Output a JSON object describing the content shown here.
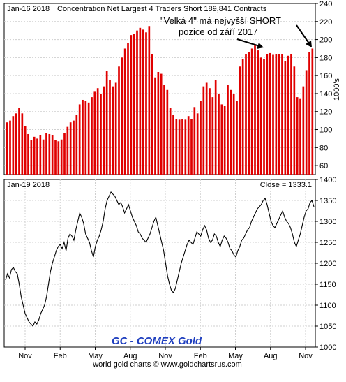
{
  "chart_data": [
    {
      "type": "bar",
      "title_date": "Jan-16  2018",
      "title": "Concentration Net Largest 4 Traders Short 189,841 Contracts",
      "ylabel": "1000's",
      "ylim": [
        50,
        240
      ],
      "yticks": [
        60,
        80,
        100,
        120,
        140,
        160,
        180,
        200,
        220,
        240
      ],
      "bar_color": "#e00000",
      "grid": true,
      "annotation": {
        "line1": "\"Velká 4\" má nejvyšší SHORT",
        "line2": "pozice od září 2017"
      },
      "values": [
        108,
        110,
        115,
        118,
        124,
        118,
        104,
        95,
        88,
        92,
        90,
        94,
        89,
        96,
        95,
        94,
        88,
        87,
        89,
        96,
        103,
        108,
        110,
        116,
        128,
        133,
        132,
        130,
        136,
        142,
        146,
        140,
        148,
        165,
        155,
        148,
        152,
        170,
        180,
        190,
        196,
        205,
        206,
        210,
        213,
        211,
        208,
        215,
        184,
        158,
        164,
        162,
        150,
        144,
        124,
        116,
        112,
        111,
        112,
        111,
        115,
        112,
        125,
        118,
        132,
        148,
        152,
        146,
        136,
        155,
        140,
        128,
        126,
        150,
        144,
        140,
        132,
        170,
        178,
        184,
        186,
        190,
        194,
        188,
        180,
        178,
        184,
        185,
        183,
        184,
        184,
        184,
        176,
        182,
        184,
        170,
        136,
        134,
        148,
        166,
        186,
        190
      ]
    },
    {
      "type": "line",
      "title_date": "Jan-19  2018",
      "close_label": "Close = 1333.1",
      "ylim": [
        1000,
        1400
      ],
      "yticks": [
        1000,
        1050,
        1100,
        1150,
        1200,
        1250,
        1300,
        1350,
        1400
      ],
      "line_color": "#000000",
      "grid": true,
      "brand": "GC - COMEX Gold",
      "x_labels": [
        "Nov",
        "Feb",
        "May",
        "Aug",
        "Nov",
        "Feb",
        "May",
        "Aug",
        "Nov"
      ],
      "values": [
        1160,
        1175,
        1165,
        1185,
        1190,
        1180,
        1175,
        1150,
        1120,
        1100,
        1080,
        1070,
        1060,
        1055,
        1050,
        1060,
        1055,
        1065,
        1080,
        1090,
        1100,
        1120,
        1150,
        1180,
        1200,
        1215,
        1230,
        1240,
        1245,
        1235,
        1250,
        1230,
        1260,
        1270,
        1265,
        1255,
        1280,
        1300,
        1320,
        1310,
        1295,
        1270,
        1260,
        1250,
        1230,
        1215,
        1240,
        1255,
        1265,
        1280,
        1300,
        1330,
        1350,
        1360,
        1370,
        1365,
        1360,
        1350,
        1340,
        1345,
        1335,
        1320,
        1330,
        1340,
        1325,
        1310,
        1300,
        1290,
        1275,
        1270,
        1260,
        1255,
        1250,
        1260,
        1270,
        1285,
        1300,
        1310,
        1290,
        1270,
        1250,
        1230,
        1200,
        1170,
        1150,
        1135,
        1130,
        1140,
        1160,
        1180,
        1200,
        1215,
        1230,
        1245,
        1255,
        1250,
        1245,
        1260,
        1275,
        1270,
        1265,
        1280,
        1290,
        1280,
        1260,
        1250,
        1255,
        1270,
        1265,
        1250,
        1240,
        1255,
        1265,
        1260,
        1250,
        1235,
        1230,
        1220,
        1215,
        1230,
        1240,
        1255,
        1260,
        1270,
        1280,
        1285,
        1300,
        1310,
        1320,
        1330,
        1335,
        1340,
        1350,
        1355,
        1340,
        1320,
        1300,
        1290,
        1285,
        1295,
        1305,
        1315,
        1325,
        1310,
        1300,
        1295,
        1285,
        1270,
        1250,
        1240,
        1255,
        1270,
        1290,
        1310,
        1325,
        1330,
        1345,
        1350,
        1335
      ]
    }
  ],
  "footer": "world gold charts © www.goldchartsrus.com"
}
